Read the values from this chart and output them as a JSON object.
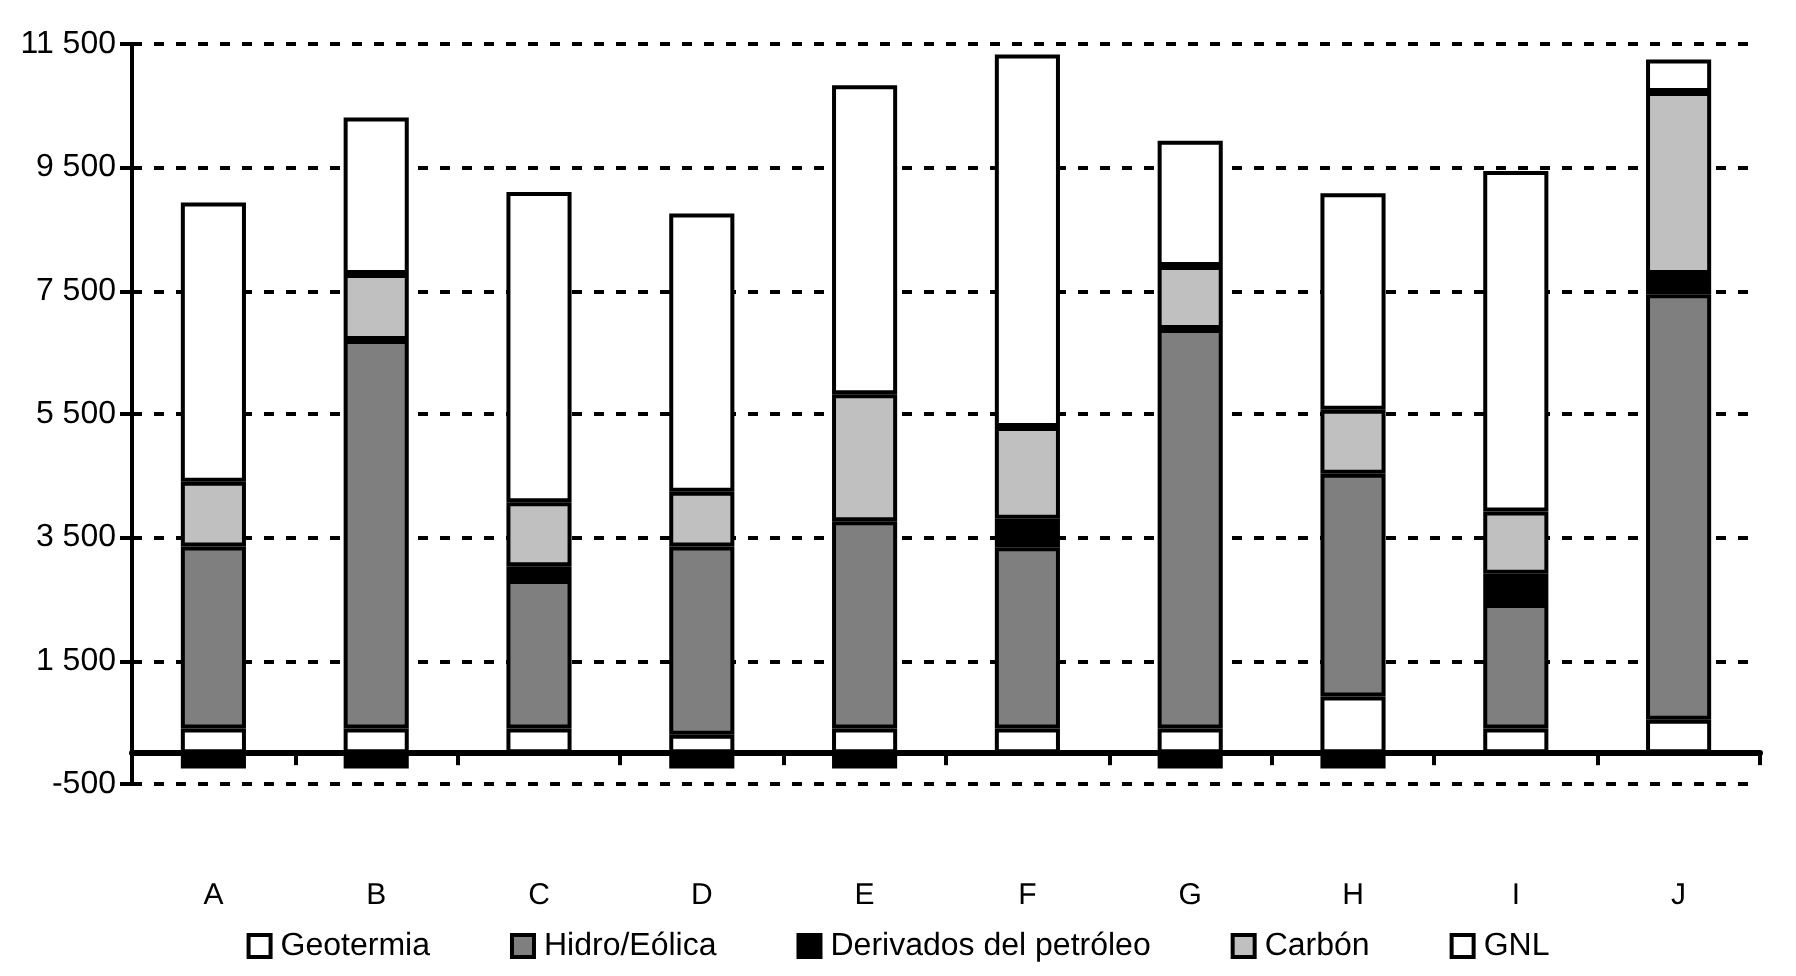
{
  "chart_data": {
    "type": "bar",
    "stacked": true,
    "categories": [
      "A",
      "B",
      "C",
      "D",
      "E",
      "F",
      "G",
      "H",
      "I",
      "J"
    ],
    "series": [
      {
        "name": "Geotermia",
        "color": "#ffffff",
        "values": [
          400,
          400,
          400,
          300,
          400,
          400,
          400,
          920,
          400,
          540
        ]
      },
      {
        "name": "Hidro/Eólica",
        "color": "#7f7f7f",
        "values": [
          2950,
          6300,
          2410,
          3050,
          3360,
          2940,
          6480,
          3610,
          2020,
          6900
        ]
      },
      {
        "name": "Derivados del petróleo",
        "color": "#000000",
        "values": [
          -250,
          -250,
          220,
          -250,
          -250,
          460,
          -250,
          -250,
          490,
          330
        ]
      },
      {
        "name": "Carbón",
        "color": "#c0c0c0",
        "values": [
          1050,
          1070,
          1040,
          890,
          2060,
          1490,
          1020,
          1040,
          1010,
          2950
        ]
      },
      {
        "name": "GNL",
        "color": "#ffffff",
        "values": [
          4530,
          2540,
          5030,
          4510,
          5010,
          6040,
          2030,
          3510,
          5520,
          530
        ]
      }
    ],
    "ylim": [
      -500,
      11500
    ],
    "yticks": [
      {
        "value": -500,
        "label": "-500"
      },
      {
        "value": 1500,
        "label": "1 500"
      },
      {
        "value": 3500,
        "label": "3 500"
      },
      {
        "value": 5500,
        "label": "5 500"
      },
      {
        "value": 7500,
        "label": "7 500"
      },
      {
        "value": 9500,
        "label": "9 500"
      },
      {
        "value": 11500,
        "label": "11 500"
      }
    ],
    "grid": "y",
    "legend": "bottom"
  }
}
